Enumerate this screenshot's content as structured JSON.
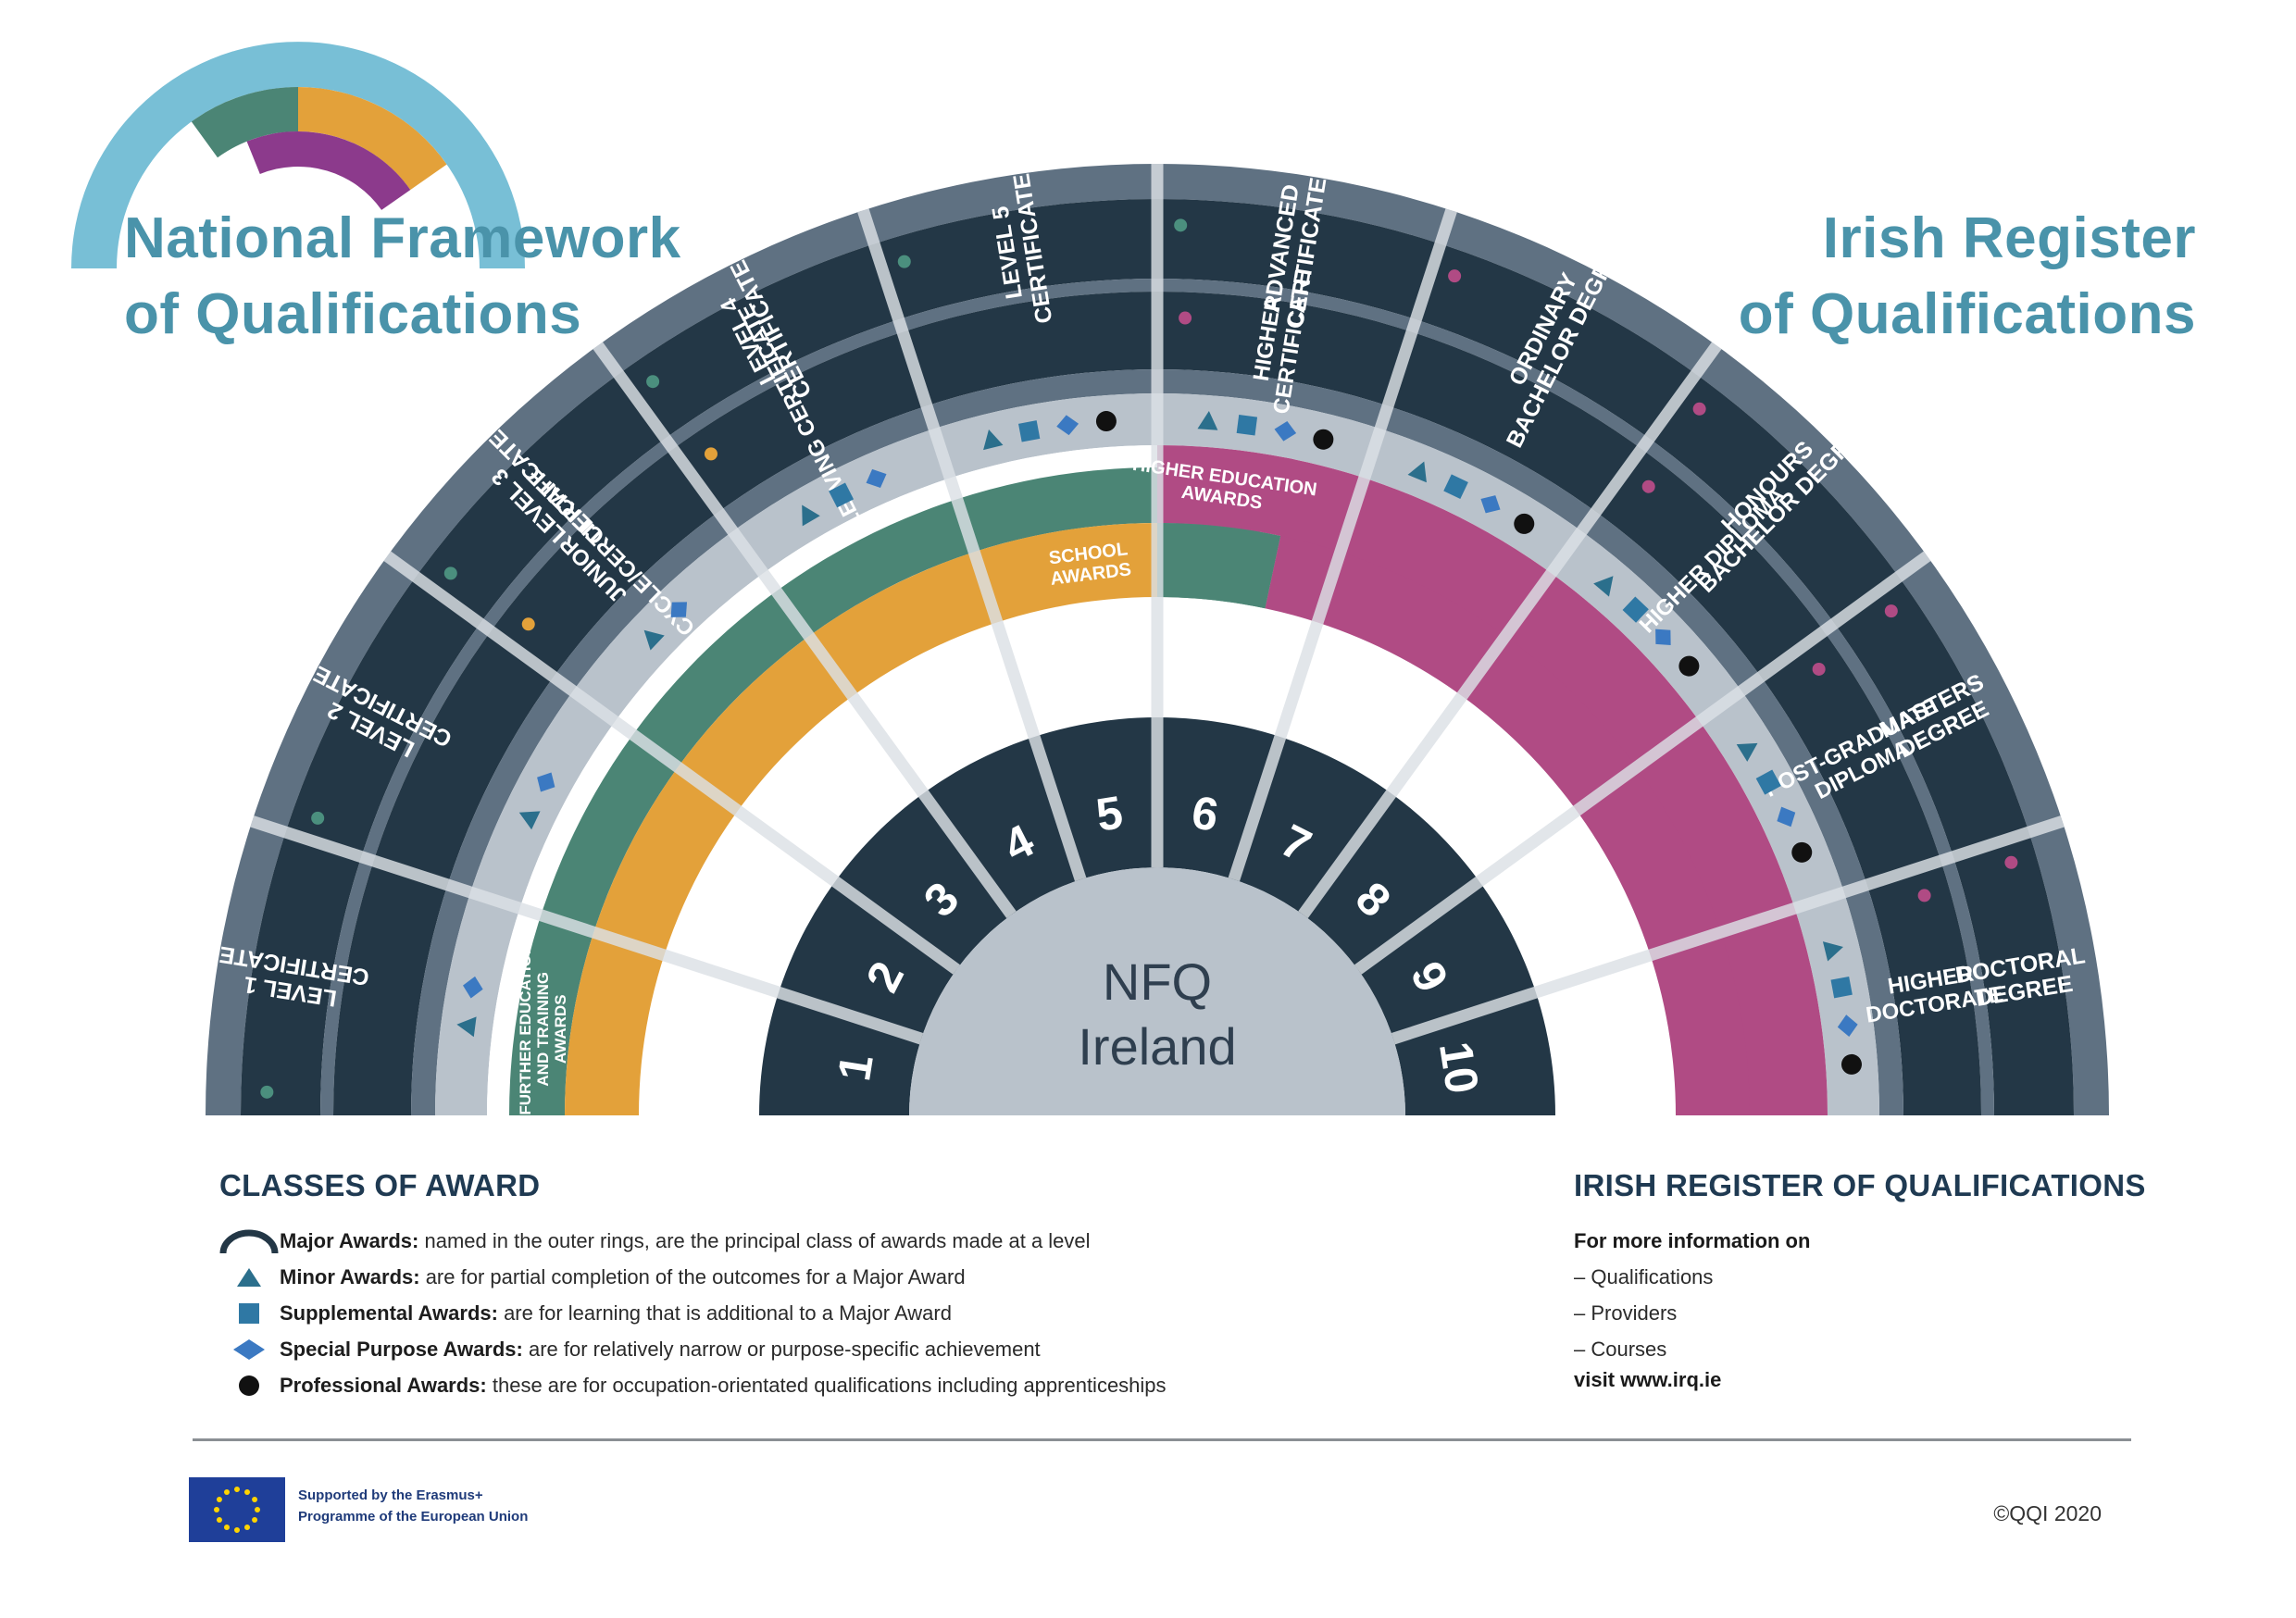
{
  "titles": {
    "left_line1": "National Framework",
    "left_line2": "of Qualifications",
    "right_line1": "Irish Register",
    "right_line2": "of Qualifications"
  },
  "colors": {
    "ring_dark": "#233746",
    "ring_border": "#5f7182",
    "band_light": "#b9c2cb",
    "further_education": "#4b8575",
    "school": "#e3a13a",
    "higher_education": "#b04b84",
    "centre": "#b9c2cb",
    "minor_icon": "#2b6f8c",
    "supplemental_icon": "#2f78a4",
    "special_icon": "#3b79c2",
    "professional_icon": "#111111",
    "dot_green": "#4b8f7e",
    "dot_orange": "#e3a13a",
    "dot_pink": "#b04b84",
    "logo_blue": "#78bfd6",
    "logo_green": "#4b8575",
    "logo_orange": "#e3a13a",
    "logo_purple": "#8c3a8c"
  },
  "centre": {
    "line1": "NFQ",
    "line2": "Ireland"
  },
  "levels": [
    "1",
    "2",
    "3",
    "4",
    "5",
    "6",
    "7",
    "8",
    "9",
    "10"
  ],
  "outer_ring": [
    {
      "lines": [
        "LEVEL 1",
        "CERTIFICATE"
      ],
      "dot": "green"
    },
    {
      "lines": [
        "LEVEL 2",
        "CERTIFICATE"
      ],
      "dot": "green"
    },
    {
      "lines": [
        "LEVEL 3",
        "CERTIFICATE"
      ],
      "dot": "green"
    },
    {
      "lines": [
        "LEVEL 4",
        "CERTIFICATE"
      ],
      "dot": "green"
    },
    {
      "lines": [
        "LEVEL 5",
        "CERTIFICATE"
      ],
      "dot": "green"
    },
    {
      "lines": [
        "ADVANCED",
        "CERTIFICATE"
      ],
      "dot": "green"
    },
    {
      "lines": [
        "ORDINARY",
        "BACHELOR DEGREE"
      ],
      "dot": "pink"
    },
    {
      "lines": [
        "HONOURS",
        "BACHELOR DEGREE"
      ],
      "dot": "pink"
    },
    {
      "lines": [
        "MASTERS",
        "DEGREE"
      ],
      "dot": "pink"
    },
    {
      "lines": [
        "DOCTORAL",
        "DEGREE"
      ],
      "dot": "pink"
    }
  ],
  "inner_ring": [
    {
      "lines": [
        "JUNIOR",
        "CYCLE/CERTIFICATE"
      ],
      "dot": "orange"
    },
    {
      "lines": [
        "LEAVING CERTIFICATE"
      ],
      "dot": "orange"
    },
    {
      "lines": [
        "HIGHER",
        "CERTIFICATE"
      ],
      "dot": "pink"
    },
    {
      "lines": [
        "HIGHER DIPLOMA"
      ],
      "dot": "pink"
    },
    {
      "lines": [
        "POST-GRADUATE",
        "DIPLOMA"
      ],
      "dot": "pink"
    },
    {
      "lines": [
        "HIGHER",
        "DOCTORATE"
      ],
      "dot": "pink"
    }
  ],
  "band_labels": {
    "further_education": [
      "FURTHER EDUCATION",
      "AND TRAINING",
      "AWARDS"
    ],
    "school": [
      "SCHOOL",
      "AWARDS"
    ],
    "higher_education": [
      "HIGHER EDUCATION",
      "AWARDS"
    ]
  },
  "classes_of_award": {
    "heading": "CLASSES OF AWARD",
    "items": [
      {
        "icon": "major-arc-icon",
        "bold": "Major Awards:",
        "text": " named in the outer rings, are the principal class of awards made at a level"
      },
      {
        "icon": "triangle-icon",
        "bold": "Minor Awards:",
        "text": " are for partial completion of the outcomes for a Major Award"
      },
      {
        "icon": "square-icon",
        "bold": "Supplemental Awards:",
        "text": " are for learning that is additional to a Major Award"
      },
      {
        "icon": "diamond-icon",
        "bold": "Special Purpose Awards:",
        "text": " are for relatively narrow or purpose-specific achievement"
      },
      {
        "icon": "circle-icon",
        "bold": "Professional Awards:",
        "text": " these are for occupation-orientated qualifications including apprenticeships"
      }
    ]
  },
  "irq": {
    "heading": "IRISH REGISTER OF QUALIFICATIONS",
    "intro": "For more information on",
    "items": [
      "–  Qualifications",
      "–  Providers",
      "–  Courses"
    ],
    "link": "visit www.irq.ie"
  },
  "footer": {
    "eu_line1": "Supported by the Erasmus+",
    "eu_line2": "Programme of the European Union",
    "copyright": "©QQI 2020"
  }
}
